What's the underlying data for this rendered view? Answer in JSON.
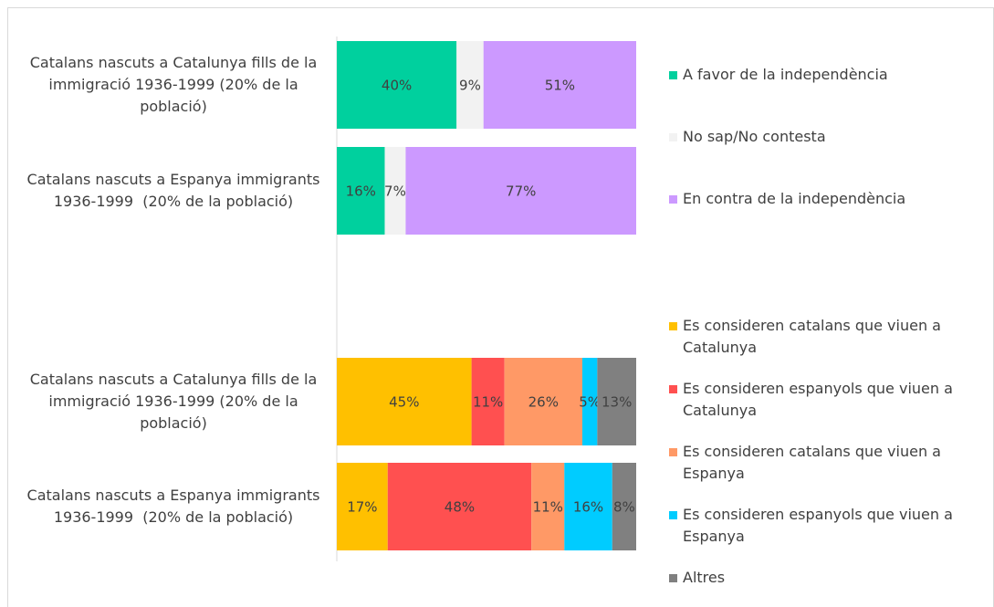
{
  "chart_data": [
    {
      "type": "bar",
      "orientation": "horizontal",
      "stacked": true,
      "categories": [
        "Catalans nascuts a Catalunya fills de la immigració 1936-1999 (20% de la població)",
        "Catalans nascuts a Espanya immigrants 1936-1999  (20% de la població)"
      ],
      "xlim": [
        0,
        100
      ],
      "series": [
        {
          "name": "A favor de la independència",
          "color": "#00d09e",
          "values": [
            40,
            16
          ],
          "value_labels": [
            "40%",
            "16%"
          ]
        },
        {
          "name": "No sap/No contesta",
          "color": "#f2f2f2",
          "values": [
            9,
            7
          ],
          "value_labels": [
            "9%",
            "7%"
          ]
        },
        {
          "name": "En contra de la independència",
          "color": "#cc99ff",
          "values": [
            51,
            77
          ],
          "value_labels": [
            "51%",
            "77%"
          ]
        }
      ]
    },
    {
      "type": "bar",
      "orientation": "horizontal",
      "stacked": true,
      "categories": [
        "Catalans nascuts a Catalunya fills de la immigració 1936-1999 (20% de la població)",
        "Catalans nascuts a Espanya immigrants 1936-1999  (20% de la població)"
      ],
      "xlim": [
        0,
        100
      ],
      "series": [
        {
          "name": "Es consideren catalans que viuen a Catalunya",
          "color": "#ffc000",
          "values": [
            45,
            17
          ],
          "value_labels": [
            "45%",
            "17%"
          ]
        },
        {
          "name": "Es consideren espanyols que viuen a Catalunya",
          "color": "#ff5050",
          "values": [
            11,
            48
          ],
          "value_labels": [
            "11%",
            "48%"
          ]
        },
        {
          "name": "Es consideren catalans que viuen a Espanya",
          "color": "#ff9966",
          "values": [
            26,
            11
          ],
          "value_labels": [
            "26%",
            "11%"
          ]
        },
        {
          "name": "Es consideren espanyols que viuen a Espanya",
          "color": "#00ccff",
          "values": [
            5,
            16
          ],
          "value_labels": [
            "5%",
            "16%"
          ]
        },
        {
          "name": "Altres",
          "color": "#808080",
          "values": [
            13,
            8
          ],
          "value_labels": [
            "13%",
            "8%"
          ]
        }
      ]
    }
  ]
}
